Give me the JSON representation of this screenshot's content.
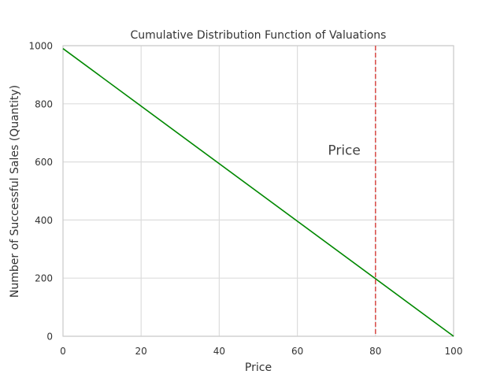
{
  "chart_data": {
    "type": "line",
    "title": "Cumulative Distribution Function of Valuations",
    "xlabel": "Price",
    "ylabel": "Number of Successful Sales (Quantity)",
    "xlim": [
      0,
      100
    ],
    "ylim": [
      0,
      1000
    ],
    "xticks": [
      0,
      20,
      40,
      60,
      80,
      100
    ],
    "yticks": [
      0,
      200,
      400,
      600,
      800,
      1000
    ],
    "grid": true,
    "series": [
      {
        "name": "Quantity",
        "color": "#008800",
        "x": [
          0,
          100
        ],
        "y": [
          990,
          0
        ]
      }
    ],
    "vline": {
      "x": 80,
      "color": "#d9534f",
      "style": "dashed"
    },
    "annotations": [
      {
        "text": "Price",
        "x": 72,
        "y": 625
      }
    ]
  }
}
